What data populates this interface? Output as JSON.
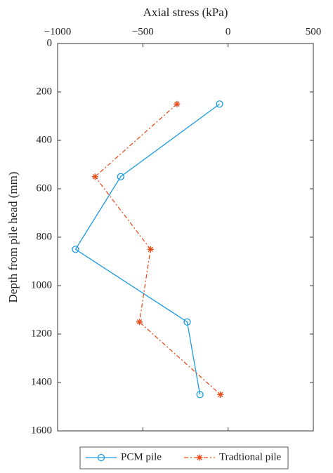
{
  "chart_data": {
    "type": "line",
    "x_label": "Axial stress (kPa)",
    "y_label": "Depth from pile head (mm)",
    "xlim": [
      -1000,
      500
    ],
    "xticks": [
      {
        "value": -1000,
        "label": "−1000"
      },
      {
        "value": -500,
        "label": "−500"
      },
      0,
      500
    ],
    "ylim": [
      0,
      1600
    ],
    "yticks": [
      0,
      200,
      400,
      600,
      800,
      1000,
      1200,
      1400,
      1600
    ],
    "y_inverted": true,
    "x_axis_position": "top",
    "legend": "bottom",
    "series": [
      {
        "name": "PCM pile",
        "color": "#1c9ce0",
        "marker": "circle",
        "dash": "solid",
        "x": [
          -50,
          -630,
          -895,
          -240,
          -165
        ],
        "y": [
          250,
          550,
          850,
          1150,
          1450
        ]
      },
      {
        "name": "Tradtional pile",
        "color": "#e8501e",
        "marker": "asterisk",
        "dash": "dashdot",
        "x": [
          -300,
          -780,
          -455,
          -520,
          -45
        ],
        "y": [
          250,
          550,
          850,
          1150,
          1450
        ]
      }
    ]
  }
}
